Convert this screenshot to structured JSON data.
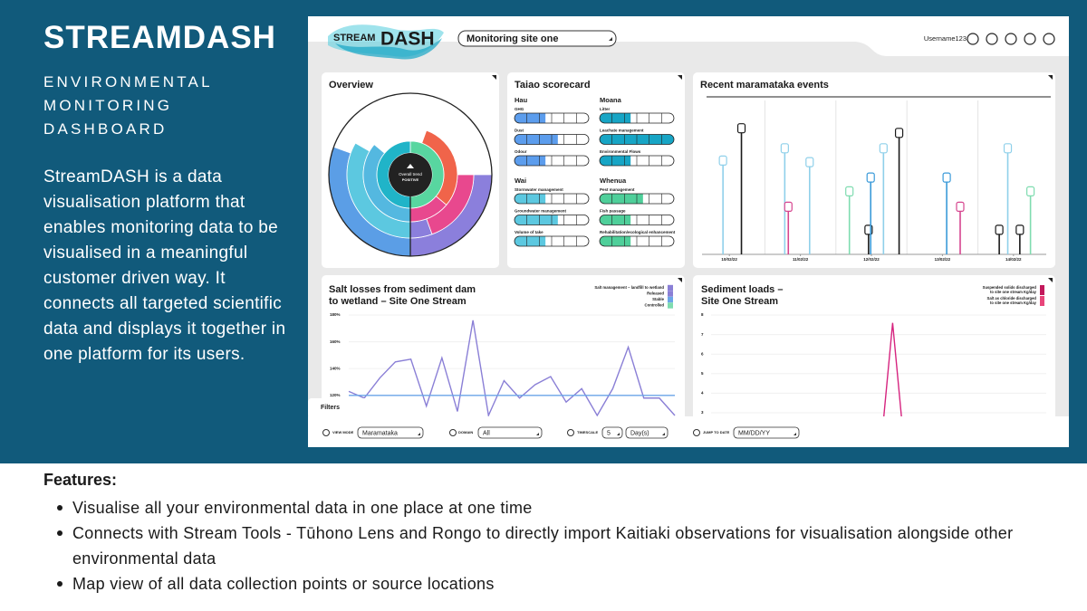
{
  "header": {
    "title": "STREAMDASH",
    "subtitle": "ENVIRONMENTAL MONITORING DASHBOARD",
    "description": "StreamDASH is a data visualisation platform that enables monitoring data to be visualised in a meaningful customer driven way. It connects all targeted scientific data and displays it together in one platform for its users."
  },
  "dashboard": {
    "logo": {
      "stream": "STREAM",
      "dash": "DASH"
    },
    "site_select": "Monitoring site one",
    "username": "Username123",
    "overview": {
      "title": "Overview",
      "center_label": "Overall trend",
      "center_value": "POSITIVE",
      "rings": [
        {
          "values": [
            90,
            90,
            110,
            70
          ],
          "colors": [
            "#ffffff",
            "#8b7fdc",
            "#5b9ee6",
            "#ffffff"
          ]
        },
        {
          "values": [
            90,
            70,
            20,
            120,
            60
          ],
          "colors": [
            "#ffffff",
            "#e8488e",
            "#8b7fdc",
            "#5cc8e0",
            "#ffffff"
          ]
        },
        {
          "values": [
            20,
            110,
            50,
            130,
            50
          ],
          "colors": [
            "#ffffff",
            "#f0644a",
            "#e8488e",
            "#54b8e0",
            "#ffffff"
          ]
        },
        {
          "values": [
            180,
            180
          ],
          "colors": [
            "#58d6a0",
            "#20b4c8"
          ]
        }
      ]
    },
    "scorecard": {
      "title": "Taiao scorecard",
      "groups": [
        {
          "name": "Hau",
          "color": "#5c9ded",
          "items": [
            {
              "label": "GHG",
              "value": 2.5
            },
            {
              "label": "Dust",
              "value": 3.5
            },
            {
              "label": "Odour",
              "value": 2.5
            }
          ]
        },
        {
          "name": "Moana",
          "color": "#17a5c5",
          "items": [
            {
              "label": "Litter",
              "value": 2.5
            },
            {
              "label": "Leachate management",
              "value": 6
            },
            {
              "label": "Environmental Flows",
              "value": 2.5
            }
          ]
        },
        {
          "name": "Wai",
          "color": "#5cc8e0",
          "items": [
            {
              "label": "Stormwater management",
              "value": 2.5
            },
            {
              "label": "Groundwater management",
              "value": 3.5
            },
            {
              "label": "Volume of take",
              "value": 2.5
            }
          ]
        },
        {
          "name": "Whenua",
          "color": "#4fcf9a",
          "items": [
            {
              "label": "Pest management",
              "value": 3.5
            },
            {
              "label": "Fish passage",
              "value": 2.5
            },
            {
              "label": "Rehabilitation/ecological enhancement",
              "value": 2.5
            }
          ]
        }
      ]
    },
    "maramataka": {
      "title": "Recent maramataka events",
      "xlim": [
        -0.5,
        4.5
      ],
      "xticks": [
        {
          "value": 0,
          "label": "10/02/22"
        },
        {
          "value": 1,
          "label": "11/02/22"
        },
        {
          "value": 2,
          "label": "12/02/22"
        },
        {
          "value": 3,
          "label": "13/02/22"
        },
        {
          "value": 4,
          "label": "14/02/22"
        }
      ],
      "ylim": [
        0,
        100
      ],
      "x": [
        -0.09,
        0.17,
        0.78,
        0.83,
        1.13,
        1.69,
        1.96,
        1.99,
        2.17,
        2.39,
        3.06,
        3.25,
        3.8,
        3.92,
        4.09,
        4.24
      ],
      "values": [
        58,
        79,
        66,
        28,
        57,
        38,
        13,
        47,
        66,
        76,
        47,
        28,
        13,
        66,
        13,
        38
      ],
      "colors": [
        "#8fd0ea",
        "#1a1a1a",
        "#8fd0ea",
        "#d6458f",
        "#8fd0ea",
        "#7fdcb0",
        "#1a1a1a",
        "#3a9ad9",
        "#8fd0ea",
        "#1a1a1a",
        "#3a9ad9",
        "#d6458f",
        "#1a1a1a",
        "#8fd0ea",
        "#1a1a1a",
        "#7fdcb0"
      ]
    },
    "salt": {
      "title": [
        "Salt losses from sediment dam",
        "to wetland – Site One Stream"
      ],
      "legend": [
        {
          "name": "Salt management – landfill to wetland",
          "color": "#8a7fd6"
        },
        {
          "name": "Released",
          "color": "#8a7fd6"
        },
        {
          "name": "Stable",
          "color": "#6ba6e8"
        },
        {
          "name": "Controlled",
          "color": "#7fdcb0"
        }
      ],
      "ylim": [
        105,
        182
      ],
      "yticks": [
        {
          "value": 120,
          "label": "120%"
        },
        {
          "value": 140,
          "label": "140%"
        },
        {
          "value": 160,
          "label": "160%"
        },
        {
          "value": 180,
          "label": "180%"
        }
      ],
      "series": [
        {
          "color": "#8a7fd6",
          "values": [
            123,
            118,
            133,
            145,
            147,
            112,
            148,
            108,
            176,
            105,
            131,
            118,
            128,
            134,
            115,
            125,
            105,
            125,
            156,
            118,
            118,
            105
          ]
        },
        {
          "color": "#6ba6e8",
          "values": [
            120,
            120,
            120,
            120,
            120,
            120,
            120,
            120,
            120,
            120,
            120,
            120,
            120,
            120,
            120,
            120,
            120,
            120,
            120,
            120,
            120,
            120
          ]
        }
      ]
    },
    "sediment": {
      "title": [
        "Sediment loads –",
        "Site One Stream"
      ],
      "legend": [
        {
          "name": [
            "Suspended solids discharged",
            "to site one stream Kg/day"
          ],
          "color": "#c2185b"
        },
        {
          "name": [
            "Salt as chloride discharged",
            "to site one stream Kg/day"
          ],
          "color": "#e8457a"
        }
      ],
      "ylim": [
        3,
        8
      ],
      "yticks": [
        3,
        4,
        5,
        6,
        7,
        8
      ],
      "series": [
        {
          "color": "#d6247f",
          "values": [
            null,
            null,
            null,
            null,
            null,
            null,
            null,
            null,
            null,
            null,
            null,
            null,
            0,
            7.6,
            0,
            null,
            null,
            null,
            null,
            null,
            null,
            null,
            null,
            null,
            null
          ]
        }
      ]
    },
    "filters": {
      "tab": "Filters",
      "view_mode": {
        "label": "VIEW MODE",
        "value": "Maramataka"
      },
      "domain": {
        "label": "DOMAIN",
        "value": "All"
      },
      "timescale": {
        "label": "TIMESCALE",
        "value": "5",
        "unit": "Day(s)"
      },
      "jump_to_date": {
        "label": "JUMP TO DATE",
        "value": "MM/DD/YY"
      }
    }
  },
  "features": {
    "title": "Features:",
    "items": [
      "Visualise all your environmental data in one place at one time",
      "Connects with Stream Tools - Tūhono Lens and Rongo to directly import Kaitiaki observations for visualisation alongside other environmental data",
      "Map view of all data collection points or source locations"
    ]
  }
}
